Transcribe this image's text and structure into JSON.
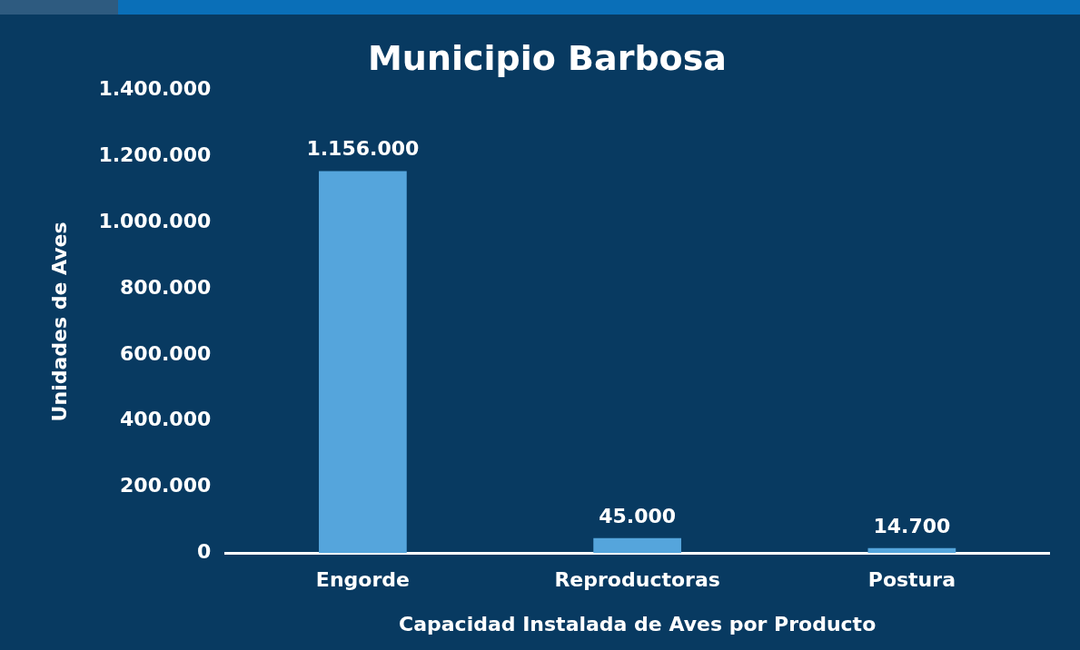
{
  "chart_data": {
    "type": "bar",
    "title": "Municipio Barbosa",
    "xlabel": "Capacidad Instalada de Aves por Producto",
    "ylabel": "Unidades de Aves",
    "categories": [
      "Engorde",
      "Reproductoras",
      "Postura"
    ],
    "values": [
      1156000,
      45000,
      14700
    ],
    "value_labels": [
      "1.156.000",
      "45.000",
      "14.700"
    ],
    "color": "#55a5dc",
    "ylim": [
      0,
      1400000
    ],
    "yticks": [
      {
        "value": 0,
        "label": "0"
      },
      {
        "value": 200000,
        "label": "200.000"
      },
      {
        "value": 400000,
        "label": "400.000"
      },
      {
        "value": 600000,
        "label": "600.000"
      },
      {
        "value": 800000,
        "label": "800.000"
      },
      {
        "value": 1000000,
        "label": "1.000.000"
      },
      {
        "value": 1200000,
        "label": "1.200.000"
      },
      {
        "value": 1400000,
        "label": "1.400.000"
      }
    ],
    "grid": false,
    "legend": false
  }
}
